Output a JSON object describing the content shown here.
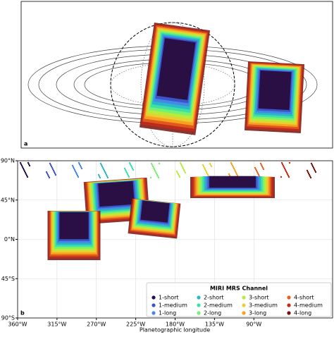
{
  "chart_data": [
    {
      "type": "footprint-diagram",
      "panel_label": "a"
    },
    {
      "type": "footprint-map",
      "panel_label": "b",
      "xlabel": "Planetographic longitude",
      "xlim": [
        360,
        0
      ],
      "ylim": [
        -90,
        90
      ],
      "xticks": [
        {
          "value": 360,
          "label": "360°W"
        },
        {
          "value": 315,
          "label": "315°W"
        },
        {
          "value": 270,
          "label": "270°W"
        },
        {
          "value": 225,
          "label": "225°W"
        },
        {
          "value": 180,
          "label": "180°W"
        },
        {
          "value": 135,
          "label": "135°W"
        },
        {
          "value": 90,
          "label": "90°W"
        }
      ],
      "yticks": [
        {
          "value": 90,
          "label": "90°N"
        },
        {
          "value": 45,
          "label": "45°N"
        },
        {
          "value": 0,
          "label": "0°N"
        },
        {
          "value": -45,
          "label": "45°S"
        },
        {
          "value": -90,
          "label": "90°S"
        }
      ],
      "grid": true,
      "legend_title": "MIRI MRS Channel",
      "legend_position": "lower right",
      "series": [
        {
          "name": "1-short",
          "color": "#2a0f45"
        },
        {
          "name": "1-medium",
          "color": "#3a55c8"
        },
        {
          "name": "1-long",
          "color": "#4686e6"
        },
        {
          "name": "2-short",
          "color": "#28b8c8"
        },
        {
          "name": "2-medium",
          "color": "#3ee0a8"
        },
        {
          "name": "2-long",
          "color": "#78f070"
        },
        {
          "name": "3-short",
          "color": "#b8ec3c"
        },
        {
          "name": "3-medium",
          "color": "#e8d030"
        },
        {
          "name": "3-long",
          "color": "#f8a020"
        },
        {
          "name": "4-short",
          "color": "#e86020"
        },
        {
          "name": "4-medium",
          "color": "#c42a18"
        },
        {
          "name": "4-long",
          "color": "#78100c"
        }
      ]
    }
  ]
}
